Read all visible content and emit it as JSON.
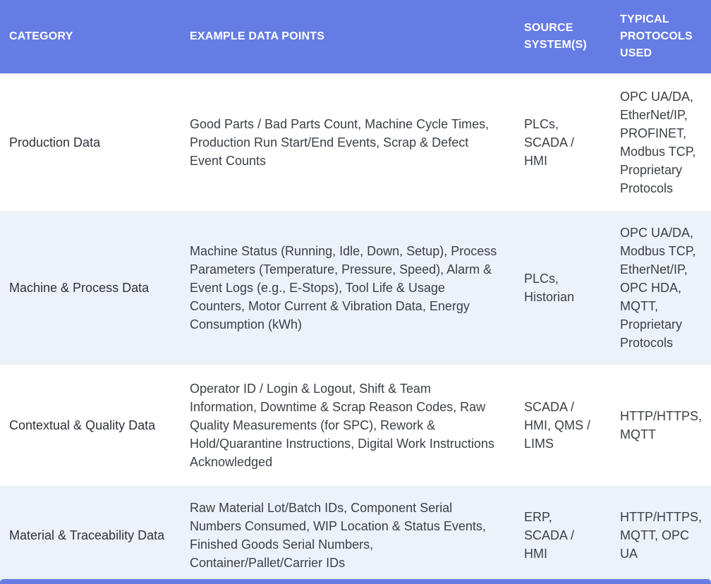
{
  "table": {
    "columns": [
      "CATEGORY",
      "EXAMPLE DATA POINTS",
      "SOURCE\nSYSTEM(S)",
      "TYPICAL\nPROTOCOLS\nUSED"
    ],
    "rows": [
      {
        "category": "Production Data",
        "examples": "Good Parts / Bad Parts Count, Machine Cycle Times,\nProduction Run Start/End Events, Scrap & Defect\nEvent Counts",
        "sources": "PLCs,\nSCADA /\nHMI",
        "protocols": "OPC UA/DA,\nEtherNet/IP,\nPROFINET,\nModbus TCP,\nProprietary\nProtocols"
      },
      {
        "category": "Machine & Process Data",
        "examples": "Machine Status (Running, Idle, Down, Setup), Process\nParameters (Temperature, Pressure, Speed), Alarm &\nEvent Logs (e.g., E-Stops), Tool Life & Usage\nCounters, Motor Current & Vibration Data, Energy\nConsumption (kWh)",
        "sources": "PLCs,\nHistorian",
        "protocols": "OPC UA/DA,\nModbus TCP,\nEtherNet/IP,\nOPC HDA,\nMQTT,\nProprietary\nProtocols"
      },
      {
        "category": "Contextual & Quality Data",
        "examples": "Operator ID / Login & Logout, Shift & Team\nInformation, Downtime & Scrap Reason Codes, Raw\nQuality Measurements (for SPC), Rework &\nHold/Quarantine Instructions, Digital Work Instructions\nAcknowledged",
        "sources": "SCADA /\nHMI, QMS /\nLIMS",
        "protocols": "HTTP/HTTPS,\nMQTT"
      },
      {
        "category": "Material & Traceability Data",
        "examples": "Raw Material Lot/Batch IDs, Component Serial\nNumbers Consumed, WIP Location & Status Events,\nFinished Goods Serial Numbers,\nContainer/Pallet/Carrier IDs",
        "sources": "ERP,\nSCADA /\nHMI",
        "protocols": "HTTP/HTTPS,\nMQTT, OPC\nUA"
      }
    ]
  },
  "colors": {
    "header_bg": "#657CE4",
    "header_text": "#FFFFFF",
    "row_bg": "#FFFFFF",
    "row_alt_bg": "#EDF1F8",
    "body_text": "#3B3F46",
    "category_text": "#2E3138"
  }
}
